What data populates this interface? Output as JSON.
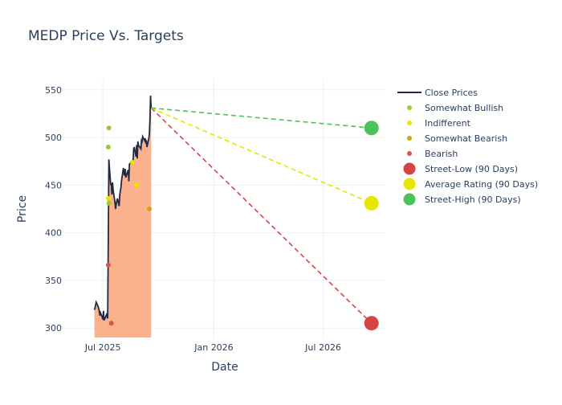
{
  "chart_data": {
    "type": "line",
    "title": "MEDP Price Vs. Targets",
    "xlabel": "Date",
    "ylabel": "Price",
    "x_range": [
      "2025-04-28",
      "2026-10-12"
    ],
    "ylim": [
      290,
      560
    ],
    "x_ticks": [
      {
        "date": "2025-07-01",
        "label": "Jul 2025"
      },
      {
        "date": "2026-01-01",
        "label": "Jan 2026"
      },
      {
        "date": "2026-07-01",
        "label": "Jul 2026"
      }
    ],
    "y_ticks": [
      300,
      350,
      400,
      450,
      500,
      550
    ],
    "grid": true,
    "legend_position": "right",
    "close_prices": {
      "name": "Close Prices",
      "color": "#1f2a44",
      "fill_color": "#fbb28c",
      "points": [
        [
          "2025-06-17",
          319
        ],
        [
          "2025-06-18",
          321
        ],
        [
          "2025-06-20",
          327
        ],
        [
          "2025-06-23",
          323
        ],
        [
          "2025-06-25",
          318
        ],
        [
          "2025-06-26",
          313
        ],
        [
          "2025-06-27",
          316
        ],
        [
          "2025-06-30",
          311
        ],
        [
          "2025-07-01",
          309
        ],
        [
          "2025-07-02",
          318
        ],
        [
          "2025-07-03",
          308
        ],
        [
          "2025-07-07",
          314
        ],
        [
          "2025-07-08",
          312
        ],
        [
          "2025-07-09",
          310
        ],
        [
          "2025-07-10",
          395
        ],
        [
          "2025-07-11",
          477
        ],
        [
          "2025-07-14",
          450
        ],
        [
          "2025-07-15",
          452
        ],
        [
          "2025-07-16",
          440
        ],
        [
          "2025-07-17",
          453
        ],
        [
          "2025-07-18",
          445
        ],
        [
          "2025-07-21",
          432
        ],
        [
          "2025-07-22",
          425
        ],
        [
          "2025-07-23",
          430
        ],
        [
          "2025-07-25",
          436
        ],
        [
          "2025-07-28",
          428
        ],
        [
          "2025-07-29",
          440
        ],
        [
          "2025-07-31",
          448
        ],
        [
          "2025-08-01",
          455
        ],
        [
          "2025-08-04",
          468
        ],
        [
          "2025-08-05",
          463
        ],
        [
          "2025-08-06",
          460
        ],
        [
          "2025-08-07",
          467
        ],
        [
          "2025-08-08",
          458
        ],
        [
          "2025-08-11",
          464
        ],
        [
          "2025-08-12",
          466
        ],
        [
          "2025-08-13",
          454
        ],
        [
          "2025-08-14",
          472
        ],
        [
          "2025-08-18",
          475
        ],
        [
          "2025-08-19",
          476
        ],
        [
          "2025-08-20",
          474
        ],
        [
          "2025-08-21",
          488
        ],
        [
          "2025-08-22",
          490
        ],
        [
          "2025-08-25",
          480
        ],
        [
          "2025-08-26",
          492
        ],
        [
          "2025-08-27",
          478
        ],
        [
          "2025-08-28",
          496
        ],
        [
          "2025-08-29",
          492
        ],
        [
          "2025-09-02",
          488
        ],
        [
          "2025-09-03",
          497
        ],
        [
          "2025-09-04",
          496
        ],
        [
          "2025-09-05",
          501
        ],
        [
          "2025-09-08",
          497
        ],
        [
          "2025-09-09",
          499
        ],
        [
          "2025-09-10",
          495
        ],
        [
          "2025-09-11",
          496
        ],
        [
          "2025-09-12",
          490
        ],
        [
          "2025-09-15",
          499
        ],
        [
          "2025-09-16",
          503
        ],
        [
          "2025-09-17",
          519
        ],
        [
          "2025-09-18",
          544
        ],
        [
          "2025-09-19",
          531
        ]
      ]
    },
    "ratings": [
      {
        "name": "Somewhat Bullish",
        "color": "#9acd32",
        "points": [
          [
            "2025-07-10",
            490
          ],
          [
            "2025-07-11",
            510
          ],
          [
            "2025-07-11",
            431
          ]
        ]
      },
      {
        "name": "Indifferent",
        "color": "#e6e600",
        "points": [
          [
            "2025-07-10",
            436
          ],
          [
            "2025-08-19",
            474
          ],
          [
            "2025-08-26",
            450
          ]
        ]
      },
      {
        "name": "Somewhat Bearish",
        "color": "#d4a017",
        "points": [
          [
            "2025-09-16",
            425
          ]
        ]
      },
      {
        "name": "Bearish",
        "color": "#d9534f",
        "points": [
          [
            "2025-07-10",
            366
          ],
          [
            "2025-07-15",
            305
          ]
        ]
      }
    ],
    "targets": {
      "start": [
        "2025-09-19",
        531
      ],
      "end_date": "2026-09-19",
      "series": [
        {
          "name": "Street-Low (90 Days)",
          "value": 305,
          "color": "#d64545"
        },
        {
          "name": "Average Rating (90 Days)",
          "value": 431,
          "color": "#e6e600"
        },
        {
          "name": "Street-High (90 Days)",
          "value": 510,
          "color": "#4cc35a"
        }
      ]
    }
  }
}
